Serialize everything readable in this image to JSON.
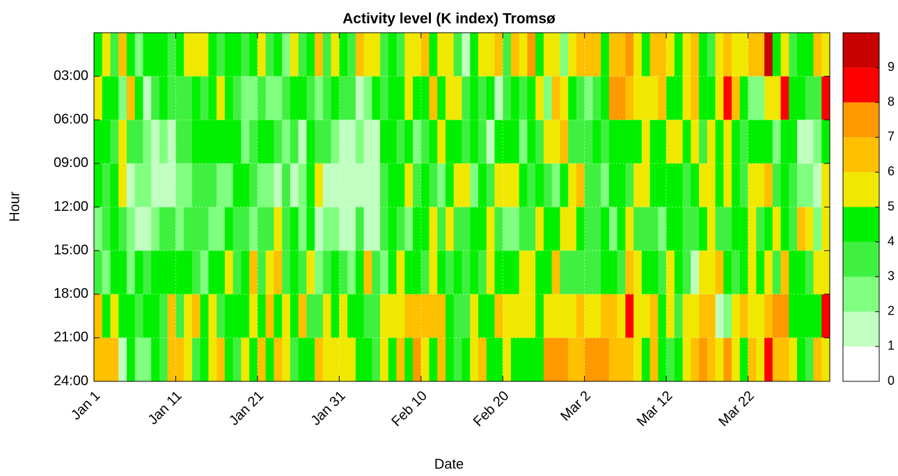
{
  "chart_data": {
    "type": "heatmap",
    "title": "Activity level (K index) Tromsø",
    "xlabel": "Date",
    "ylabel": "Hour",
    "x": [
      0,
      1,
      2,
      3,
      4,
      5,
      6,
      7,
      8,
      9,
      10,
      11,
      12,
      13,
      14,
      15,
      16,
      17,
      18,
      19,
      20,
      21,
      22,
      23,
      24,
      25,
      26,
      27,
      28,
      29,
      30,
      31,
      32,
      33,
      34,
      35,
      36,
      37,
      38,
      39,
      40,
      41,
      42,
      43,
      44,
      45,
      46,
      47,
      48,
      49,
      50,
      51,
      52,
      53,
      54,
      55,
      56,
      57,
      58,
      59,
      60,
      61,
      62,
      63,
      64,
      65,
      66,
      67,
      68,
      69,
      70,
      71,
      72,
      73,
      74,
      75,
      76,
      77,
      78,
      79,
      80,
      81,
      82,
      83,
      84,
      85,
      86,
      87,
      88,
      89
    ],
    "y": [
      0,
      3,
      6,
      9,
      12,
      15,
      18,
      21
    ],
    "xlim": [
      0,
      90
    ],
    "xticks": [
      {
        "value": 0,
        "label": "Jan 1"
      },
      {
        "value": 10,
        "label": "Jan 11"
      },
      {
        "value": 20,
        "label": "Jan 21"
      },
      {
        "value": 30,
        "label": "Jan 31"
      },
      {
        "value": 40,
        "label": "Feb 10"
      },
      {
        "value": 50,
        "label": "Feb 20"
      },
      {
        "value": 60,
        "label": "Mar 2"
      },
      {
        "value": 70,
        "label": "Mar 12"
      },
      {
        "value": 80,
        "label": "Mar 22"
      }
    ],
    "ylim": [
      0,
      24
    ],
    "yticks": [
      {
        "value": 3,
        "label": "03:00"
      },
      {
        "value": 6,
        "label": "06:00"
      },
      {
        "value": 9,
        "label": "09:00"
      },
      {
        "value": 12,
        "label": "12:00"
      },
      {
        "value": 15,
        "label": "15:00"
      },
      {
        "value": 18,
        "label": "18:00"
      },
      {
        "value": 21,
        "label": "21:00"
      },
      {
        "value": 24,
        "label": "24:00"
      }
    ],
    "grid": true,
    "colorbar": {
      "lim": [
        0,
        10
      ],
      "ticks": [
        0,
        1,
        2,
        3,
        4,
        5,
        6,
        7,
        8,
        9
      ],
      "colors": [
        "#ffffff",
        "#c0ffc0",
        "#80ff80",
        "#40f040",
        "#00f000",
        "#f0e800",
        "#ffc000",
        "#ff9900",
        "#ff0000",
        "#c80000"
      ]
    },
    "values": [
      [
        4,
        5,
        3,
        6,
        4,
        2,
        4,
        4,
        4,
        3,
        4,
        5,
        5,
        5,
        4,
        3,
        4,
        4,
        3,
        4,
        5,
        3,
        4,
        2,
        5,
        3,
        4,
        6,
        3,
        5,
        4,
        3,
        6,
        5,
        5,
        3,
        4,
        3,
        5,
        5,
        6,
        4,
        5,
        5,
        3,
        1,
        4,
        5,
        5,
        6,
        3,
        6,
        5,
        7,
        4,
        5,
        5,
        2,
        5,
        6,
        6,
        6,
        4,
        6,
        6,
        7,
        5,
        4,
        6,
        6,
        5,
        4,
        5,
        6,
        4,
        3,
        5,
        6,
        5,
        5,
        6,
        6,
        9,
        4,
        5,
        3,
        4,
        4,
        6,
        5
      ],
      [
        5,
        4,
        4,
        2,
        6,
        4,
        1,
        3,
        4,
        3,
        3,
        3,
        4,
        3,
        4,
        5,
        4,
        3,
        2,
        2,
        3,
        2,
        2,
        3,
        4,
        4,
        3,
        2,
        3,
        4,
        3,
        3,
        1,
        2,
        4,
        3,
        4,
        4,
        5,
        4,
        4,
        6,
        4,
        5,
        5,
        3,
        4,
        3,
        4,
        1,
        3,
        4,
        3,
        4,
        5,
        2,
        6,
        5,
        4,
        3,
        2,
        3,
        4,
        7,
        7,
        6,
        5,
        5,
        5,
        6,
        4,
        4,
        5,
        6,
        4,
        4,
        5,
        8,
        6,
        4,
        2,
        2,
        5,
        5,
        8,
        4,
        4,
        3,
        3,
        8
      ],
      [
        4,
        4,
        3,
        5,
        3,
        3,
        2,
        1,
        2,
        1,
        3,
        3,
        4,
        4,
        4,
        4,
        4,
        4,
        2,
        3,
        4,
        4,
        3,
        2,
        3,
        1,
        4,
        3,
        3,
        2,
        1,
        1,
        2,
        1,
        1,
        4,
        4,
        3,
        4,
        2,
        3,
        4,
        5,
        4,
        4,
        3,
        4,
        3,
        1,
        4,
        4,
        4,
        2,
        4,
        3,
        5,
        5,
        6,
        3,
        3,
        3,
        4,
        3,
        4,
        4,
        4,
        4,
        5,
        4,
        4,
        5,
        5,
        4,
        5,
        3,
        5,
        4,
        5,
        4,
        3,
        4,
        4,
        4,
        2,
        4,
        4,
        1,
        1,
        2,
        4
      ],
      [
        4,
        3,
        4,
        5,
        1,
        2,
        2,
        1,
        1,
        1,
        2,
        2,
        3,
        3,
        3,
        2,
        2,
        4,
        4,
        3,
        2,
        2,
        1,
        3,
        1,
        2,
        4,
        5,
        1,
        1,
        1,
        1,
        1,
        1,
        1,
        3,
        4,
        4,
        5,
        3,
        4,
        3,
        2,
        4,
        5,
        5,
        2,
        4,
        3,
        5,
        5,
        5,
        4,
        3,
        4,
        3,
        2,
        4,
        5,
        6,
        3,
        3,
        2,
        4,
        4,
        3,
        5,
        5,
        4,
        4,
        4,
        4,
        3,
        4,
        5,
        5,
        4,
        5,
        4,
        3,
        5,
        5,
        6,
        3,
        4,
        3,
        2,
        2,
        1,
        5
      ],
      [
        2,
        3,
        4,
        3,
        2,
        1,
        1,
        2,
        3,
        3,
        2,
        3,
        3,
        3,
        2,
        2,
        4,
        3,
        3,
        2,
        3,
        3,
        5,
        3,
        4,
        2,
        4,
        1,
        2,
        2,
        1,
        1,
        3,
        1,
        1,
        3,
        4,
        3,
        2,
        4,
        4,
        5,
        3,
        5,
        3,
        3,
        4,
        4,
        5,
        3,
        2,
        2,
        3,
        3,
        5,
        4,
        4,
        5,
        5,
        4,
        3,
        3,
        4,
        2,
        4,
        5,
        3,
        3,
        3,
        2,
        4,
        4,
        3,
        3,
        4,
        5,
        3,
        3,
        4,
        4,
        5,
        3,
        4,
        5,
        4,
        3,
        6,
        5,
        2,
        5
      ],
      [
        3,
        2,
        4,
        4,
        2,
        4,
        3,
        4,
        4,
        4,
        4,
        4,
        3,
        2,
        4,
        4,
        5,
        3,
        4,
        6,
        3,
        5,
        6,
        3,
        4,
        3,
        5,
        2,
        3,
        4,
        3,
        2,
        4,
        6,
        3,
        2,
        4,
        5,
        4,
        4,
        3,
        5,
        4,
        3,
        4,
        3,
        4,
        3,
        5,
        4,
        4,
        4,
        5,
        5,
        4,
        4,
        6,
        3,
        3,
        3,
        3,
        3,
        4,
        4,
        3,
        6,
        5,
        4,
        4,
        3,
        5,
        4,
        3,
        1,
        5,
        5,
        6,
        4,
        3,
        4,
        5,
        4,
        5,
        3,
        6,
        4,
        4,
        3,
        5,
        5
      ],
      [
        6,
        4,
        5,
        4,
        4,
        3,
        4,
        4,
        3,
        6,
        3,
        5,
        6,
        4,
        5,
        3,
        4,
        4,
        4,
        5,
        4,
        6,
        4,
        5,
        4,
        6,
        3,
        3,
        5,
        4,
        5,
        4,
        4,
        3,
        3,
        5,
        5,
        5,
        6,
        6,
        6,
        6,
        6,
        4,
        3,
        3,
        5,
        4,
        4,
        6,
        5,
        5,
        5,
        5,
        4,
        5,
        5,
        5,
        5,
        6,
        5,
        5,
        6,
        6,
        5,
        8,
        5,
        5,
        6,
        4,
        5,
        3,
        5,
        5,
        6,
        6,
        1,
        2,
        5,
        6,
        5,
        5,
        6,
        7,
        7,
        4,
        4,
        4,
        4,
        8
      ],
      [
        6,
        6,
        6,
        1,
        4,
        2,
        2,
        4,
        3,
        6,
        6,
        5,
        3,
        4,
        5,
        6,
        4,
        3,
        5,
        4,
        6,
        4,
        6,
        5,
        3,
        4,
        4,
        6,
        5,
        5,
        5,
        5,
        4,
        4,
        3,
        5,
        4,
        6,
        4,
        7,
        5,
        4,
        6,
        4,
        3,
        4,
        5,
        6,
        4,
        4,
        5,
        4,
        4,
        4,
        4,
        7,
        7,
        7,
        6,
        6,
        7,
        7,
        7,
        6,
        6,
        6,
        5,
        4,
        6,
        4,
        3,
        4,
        5,
        6,
        7,
        6,
        5,
        7,
        5,
        4,
        6,
        5,
        8,
        6,
        6,
        5,
        4,
        3,
        6,
        5
      ]
    ]
  }
}
